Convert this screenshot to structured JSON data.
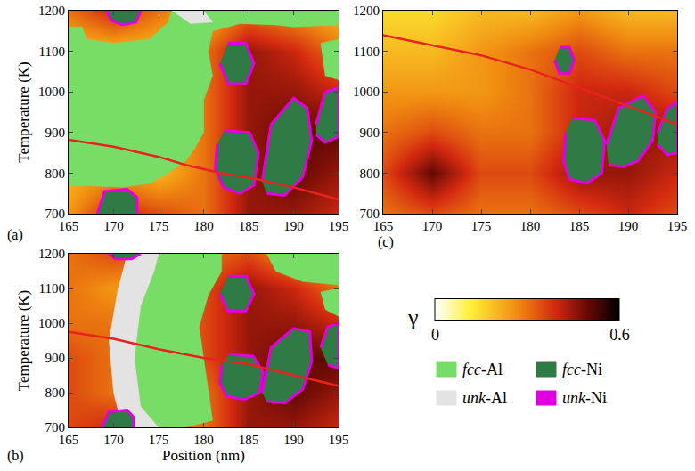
{
  "chart_data": [
    {
      "type": "heatmap",
      "label": "(a)",
      "ylabel": "Temperature (K)",
      "xlim": [
        165,
        195
      ],
      "xticks": [
        165,
        170,
        175,
        180,
        185,
        190,
        195
      ],
      "ylim": [
        700,
        1200
      ],
      "yticks": [
        700,
        800,
        900,
        1000,
        1100,
        1200
      ],
      "grid": false,
      "gamma": {
        "x": [
          165,
          170,
          175,
          180,
          185,
          190,
          195
        ],
        "y": [
          700,
          800,
          900,
          1000,
          1100,
          1200
        ],
        "z": [
          [
            0.25,
            0.4,
            0.35,
            0.3,
            0.45,
            0.45,
            0.4
          ],
          [
            0.2,
            0.25,
            0.2,
            0.3,
            0.45,
            0.5,
            0.45
          ],
          [
            0.2,
            0.2,
            0.2,
            0.3,
            0.45,
            0.5,
            0.5
          ],
          [
            0.2,
            0.2,
            0.2,
            0.3,
            0.45,
            0.45,
            0.4
          ],
          [
            0.2,
            0.2,
            0.2,
            0.3,
            0.45,
            0.4,
            0.3
          ],
          [
            0.3,
            0.4,
            0.3,
            0.2,
            0.3,
            0.25,
            0.2
          ]
        ]
      },
      "regions": [
        {
          "phase": "fcc-Al",
          "x": [
            165,
            165,
            166.5,
            167,
            170,
            174,
            176,
            176.5,
            195,
            195,
            190,
            188,
            184,
            181,
            180.5,
            181,
            180,
            180,
            179,
            178,
            176,
            174,
            171,
            168
          ],
          "y": [
            770,
            1160,
            1160,
            1130,
            1120,
            1130,
            1170,
            1200,
            1200,
            1165,
            1160,
            1165,
            1168,
            1150,
            1100,
            1040,
            980,
            900,
            860,
            830,
            800,
            775,
            765,
            768
          ]
        },
        {
          "phase": "fcc-Al",
          "x": [
            193,
            195,
            195,
            193.5
          ],
          "y": [
            1120,
            1130,
            1030,
            1040
          ]
        },
        {
          "phase": "unk-Al",
          "x": [
            176.5,
            180,
            181,
            178.5
          ],
          "y": [
            1200,
            1200,
            1172,
            1168
          ]
        },
        {
          "phase": "fcc-Ni",
          "edge": "unk-Ni",
          "x": [
            182.7,
            184.7,
            185.6,
            184.7,
            182.7,
            181.8
          ],
          "y": [
            1120,
            1120,
            1070,
            1020,
            1020,
            1070
          ]
        },
        {
          "phase": "fcc-Ni",
          "edge": "unk-Ni",
          "x": [
            182.3,
            185.1,
            186.1,
            185.6,
            184,
            182.2,
            181.3,
            181.5
          ],
          "y": [
            905,
            900,
            850,
            770,
            750,
            765,
            810,
            870
          ]
        },
        {
          "phase": "fcc-Ni",
          "edge": "unk-Ni",
          "x": [
            186.5,
            187.5,
            190,
            191.5,
            192,
            191,
            189,
            187
          ],
          "y": [
            780,
            920,
            985,
            960,
            880,
            790,
            745,
            750
          ]
        },
        {
          "phase": "fcc-Ni",
          "edge": "unk-Ni",
          "x": [
            192.5,
            193.5,
            195,
            195,
            193.5,
            192.5
          ],
          "y": [
            920,
            1000,
            1010,
            890,
            875,
            895
          ]
        },
        {
          "phase": "fcc-Ni",
          "edge": "unk-Ni",
          "x": [
            168.2,
            169,
            171.5,
            172.6,
            172.6
          ],
          "y": [
            700,
            755,
            760,
            740,
            700
          ]
        },
        {
          "phase": "fcc-Ni",
          "edge": "unk-Ni",
          "x": [
            169.2,
            169.8,
            171,
            172.5,
            173
          ],
          "y": [
            1200,
            1175,
            1165,
            1172,
            1200
          ]
        }
      ],
      "line": {
        "color": "#e8231f",
        "x": [
          165,
          170,
          175,
          178,
          182,
          186,
          190,
          195
        ],
        "y": [
          882,
          865,
          840,
          820,
          800,
          785,
          765,
          735
        ]
      }
    },
    {
      "type": "heatmap",
      "label": "(b)",
      "xlabel": "Position (nm)",
      "ylabel": "Temperature (K)",
      "xlim": [
        165,
        195
      ],
      "xticks": [
        165,
        170,
        175,
        180,
        185,
        190,
        195
      ],
      "ylim": [
        700,
        1200
      ],
      "yticks": [
        700,
        800,
        900,
        1000,
        1100,
        1200
      ],
      "grid": false,
      "gamma": {
        "x": [
          165,
          170,
          175,
          180,
          185,
          190,
          195
        ],
        "y": [
          700,
          800,
          900,
          1000,
          1100,
          1200
        ],
        "z": [
          [
            0.35,
            0.4,
            0.3,
            0.3,
            0.45,
            0.45,
            0.4
          ],
          [
            0.35,
            0.3,
            0.25,
            0.3,
            0.45,
            0.5,
            0.45
          ],
          [
            0.35,
            0.3,
            0.25,
            0.35,
            0.45,
            0.5,
            0.5
          ],
          [
            0.3,
            0.3,
            0.25,
            0.35,
            0.45,
            0.45,
            0.4
          ],
          [
            0.3,
            0.25,
            0.25,
            0.35,
            0.45,
            0.4,
            0.3
          ],
          [
            0.3,
            0.35,
            0.3,
            0.3,
            0.35,
            0.25,
            0.2
          ]
        ]
      },
      "regions": [
        {
          "phase": "fcc-Al",
          "x": [
            175,
            182,
            182,
            180.5,
            179.5,
            180,
            181,
            178,
            175,
            173,
            172.3,
            173,
            174.5
          ],
          "y": [
            1200,
            1200,
            1150,
            1080,
            990,
            900,
            720,
            700,
            700,
            760,
            900,
            1050,
            1150
          ]
        },
        {
          "phase": "fcc-Al",
          "x": [
            187,
            195,
            195,
            191,
            188
          ],
          "y": [
            1200,
            1200,
            1110,
            1120,
            1150
          ]
        },
        {
          "phase": "fcc-Al",
          "x": [
            193,
            195,
            195,
            193.5
          ],
          "y": [
            1090,
            1100,
            1020,
            1040
          ]
        },
        {
          "phase": "unk-Al",
          "x": [
            171.5,
            175,
            174.5,
            173,
            172.3,
            173,
            175,
            171,
            170,
            169.5,
            170.5
          ],
          "y": [
            1200,
            1200,
            1150,
            1050,
            900,
            760,
            700,
            700,
            800,
            950,
            1100
          ]
        },
        {
          "phase": "fcc-Ni",
          "edge": "unk-Ni",
          "x": [
            169.5,
            170.2,
            172,
            173
          ],
          "y": [
            1200,
            1185,
            1185,
            1200
          ]
        },
        {
          "phase": "fcc-Ni",
          "edge": "unk-Ni",
          "x": [
            182.7,
            184.7,
            185.6,
            184.7,
            182.7,
            181.8
          ],
          "y": [
            1135,
            1135,
            1085,
            1035,
            1035,
            1085
          ]
        },
        {
          "phase": "fcc-Ni",
          "edge": "unk-Ni",
          "x": [
            182.8,
            185.5,
            186.6,
            186.2,
            184.5,
            182.5,
            181.8,
            182
          ],
          "y": [
            910,
            905,
            860,
            800,
            780,
            790,
            830,
            880
          ]
        },
        {
          "phase": "fcc-Ni",
          "edge": "unk-Ni",
          "x": [
            186.5,
            187.5,
            190,
            191.8,
            192,
            191,
            189,
            187
          ],
          "y": [
            800,
            930,
            985,
            975,
            890,
            810,
            770,
            775
          ]
        },
        {
          "phase": "fcc-Ni",
          "edge": "unk-Ni",
          "x": [
            193,
            193.8,
            195,
            195,
            193.8
          ],
          "y": [
            930,
            990,
            1000,
            870,
            880
          ]
        },
        {
          "phase": "fcc-Ni",
          "edge": "unk-Ni",
          "x": [
            168.7,
            169.5,
            171.5,
            172.2,
            172.2
          ],
          "y": [
            700,
            745,
            750,
            730,
            700
          ]
        }
      ],
      "line": {
        "color": "#e8231f",
        "x": [
          165,
          170,
          175,
          180,
          185,
          190,
          195
        ],
        "y": [
          975,
          955,
          925,
          900,
          882,
          850,
          820
        ]
      }
    },
    {
      "type": "heatmap",
      "label": "(c)",
      "xlim": [
        165,
        195
      ],
      "xticks": [
        165,
        170,
        175,
        180,
        185,
        190,
        195
      ],
      "ylim": [
        700,
        1200
      ],
      "yticks": [
        700,
        800,
        900,
        1000,
        1100,
        1200
      ],
      "grid": false,
      "gamma": {
        "x": [
          165,
          170,
          175,
          180,
          185,
          190,
          195
        ],
        "y": [
          700,
          800,
          900,
          1000,
          1100,
          1200
        ],
        "z": [
          [
            0.3,
            0.35,
            0.3,
            0.3,
            0.35,
            0.4,
            0.35
          ],
          [
            0.35,
            0.5,
            0.35,
            0.35,
            0.45,
            0.45,
            0.4
          ],
          [
            0.3,
            0.35,
            0.3,
            0.3,
            0.4,
            0.45,
            0.45
          ],
          [
            0.25,
            0.25,
            0.25,
            0.3,
            0.4,
            0.4,
            0.35
          ],
          [
            0.2,
            0.2,
            0.25,
            0.3,
            0.35,
            0.3,
            0.3
          ],
          [
            0.15,
            0.15,
            0.2,
            0.2,
            0.25,
            0.2,
            0.2
          ]
        ]
      },
      "regions": [
        {
          "phase": "fcc-Ni",
          "edge": "unk-Ni",
          "x": [
            183,
            184,
            184.5,
            184,
            183,
            182.5
          ],
          "y": [
            1110,
            1110,
            1078,
            1046,
            1046,
            1078
          ]
        },
        {
          "phase": "fcc-Ni",
          "edge": "unk-Ni",
          "x": [
            184.3,
            186.6,
            187.6,
            187.3,
            185.8,
            184,
            183.4,
            183.6
          ],
          "y": [
            935,
            930,
            880,
            800,
            775,
            785,
            830,
            900
          ]
        },
        {
          "phase": "fcc-Ni",
          "edge": "unk-Ni",
          "x": [
            187.8,
            189,
            191.5,
            192.8,
            192.5,
            191,
            189.5,
            188
          ],
          "y": [
            870,
            960,
            990,
            950,
            880,
            830,
            815,
            820
          ]
        },
        {
          "phase": "fcc-Ni",
          "edge": "unk-Ni",
          "x": [
            193,
            194,
            195,
            195,
            194,
            193
          ],
          "y": [
            900,
            960,
            975,
            850,
            845,
            870
          ]
        }
      ],
      "line": {
        "color": "#e8231f",
        "x": [
          165,
          170,
          175,
          180,
          185,
          190,
          195
        ],
        "y": [
          1140,
          1115,
          1090,
          1055,
          1010,
          965,
          920
        ]
      }
    }
  ],
  "color_bar": {
    "title": "γ",
    "range": [
      0,
      0.6
    ],
    "ticks": [
      0,
      0.6
    ]
  },
  "phases": [
    {
      "name": "fcc-Al",
      "color": "#77dd66"
    },
    {
      "name": "fcc-Ni",
      "color": "#2f7a45"
    },
    {
      "name": "unk-Al",
      "color": "#e3e3e3"
    },
    {
      "name": "unk-Ni",
      "color": "#e000e0"
    }
  ]
}
